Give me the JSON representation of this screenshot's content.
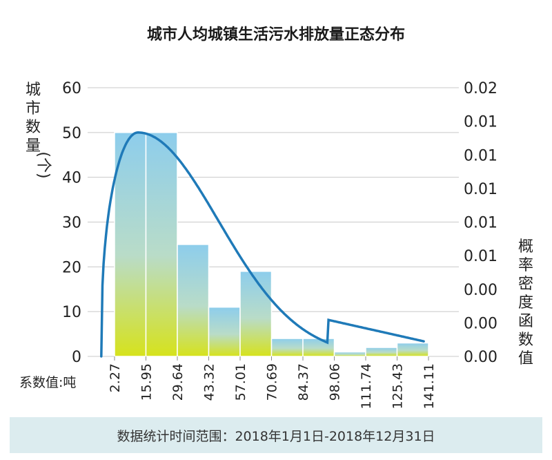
{
  "chart_data": {
    "type": "bar",
    "title": "城市人均城镇生活污水排放量正态分布",
    "left_ylabel": "城市数量(个)",
    "right_ylabel": "概率密度函数值",
    "xlabel": "系数值:吨",
    "left_ylim": [
      0,
      60
    ],
    "left_yticks": [
      "0",
      "10",
      "20",
      "30",
      "40",
      "50",
      "60"
    ],
    "right_yticks": [
      "0.00",
      "0.00",
      "0.00",
      "0.01",
      "0.01",
      "0.01",
      "0.01",
      "0.01",
      "0.02"
    ],
    "xticks": [
      "2.27",
      "15.95",
      "29.64",
      "43.32",
      "57.01",
      "70.69",
      "84.37",
      "98.06",
      "111.74",
      "125.43",
      "141.11"
    ],
    "values": [
      50,
      50,
      25,
      11,
      19,
      4,
      4,
      1,
      2,
      3
    ],
    "grid": true,
    "colors": {
      "bar_top": "#8dcdec",
      "bar_bottom": "#d6e21c",
      "curve": "#1f7ab8",
      "grid": "#c8c8c8"
    }
  },
  "footer": {
    "text": "数据统计时间范围：2018年1月1日-2018年12月31日"
  }
}
